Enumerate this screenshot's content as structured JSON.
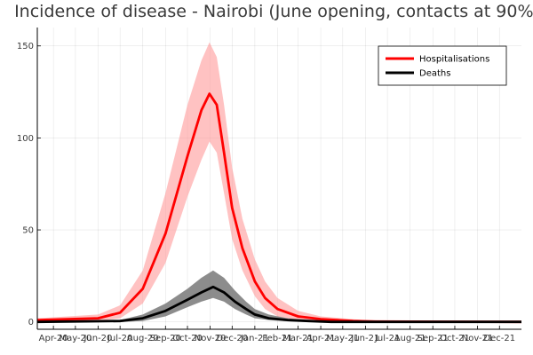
{
  "chart_data": {
    "type": "line",
    "title": "Incidence of disease - Nairobi (June opening, contacts at 90%)",
    "xlabel": "",
    "ylabel": "",
    "x_ticks": [
      "Apr-20",
      "May-20",
      "Jun-20",
      "Jul-20",
      "Aug-20",
      "Sep-20",
      "Oct-20",
      "Nov-20",
      "Dec-20",
      "Jan-21",
      "Feb-21",
      "Mar-21",
      "Apr-21",
      "May-21",
      "Jun-21",
      "Jul-21",
      "Aug-21",
      "Sep-21",
      "Oct-21",
      "Nov-21",
      "Dec-21"
    ],
    "x_range": [
      "2020-03-10",
      "2021-12-31"
    ],
    "y_ticks": [
      0,
      50,
      100,
      150
    ],
    "ylim": [
      -4,
      160
    ],
    "grid": true,
    "legend_position": "top-right",
    "series": [
      {
        "name": "Hospitalisations",
        "color": "#ff0000",
        "band_color": "#ff9999",
        "x": [
          "2020-03-10",
          "2020-06-01",
          "2020-07-01",
          "2020-08-01",
          "2020-09-01",
          "2020-10-01",
          "2020-10-20",
          "2020-10-31",
          "2020-11-10",
          "2020-11-20",
          "2020-12-01",
          "2020-12-15",
          "2021-01-01",
          "2021-01-15",
          "2021-02-01",
          "2021-03-01",
          "2021-04-01",
          "2021-05-15",
          "2021-06-15",
          "2021-12-31"
        ],
        "values": [
          1,
          2,
          5,
          18,
          48,
          90,
          115,
          124,
          118,
          92,
          62,
          40,
          22,
          13,
          7,
          3,
          1.5,
          0.5,
          0.2,
          0
        ],
        "lower": [
          0,
          0.5,
          2,
          10,
          32,
          68,
          88,
          98,
          92,
          70,
          45,
          28,
          14,
          7,
          3,
          1,
          0.3,
          0,
          0,
          0
        ],
        "upper": [
          2,
          4,
          9,
          28,
          70,
          118,
          142,
          152,
          144,
          118,
          84,
          56,
          34,
          22,
          13,
          6,
          3,
          1.5,
          0.5,
          0
        ]
      },
      {
        "name": "Deaths",
        "color": "#000000",
        "band_color": "#808080",
        "x": [
          "2020-03-10",
          "2020-07-01",
          "2020-08-01",
          "2020-09-01",
          "2020-10-01",
          "2020-10-20",
          "2020-11-05",
          "2020-11-20",
          "2020-12-05",
          "2020-12-20",
          "2021-01-01",
          "2021-01-20",
          "2021-02-15",
          "2021-03-15",
          "2021-04-15",
          "2021-06-01",
          "2021-12-31"
        ],
        "values": [
          0,
          0.5,
          2,
          6,
          12,
          16,
          19,
          16,
          11,
          7,
          4,
          2,
          1,
          0.5,
          0,
          0,
          0
        ],
        "lower": [
          0,
          0,
          0.5,
          3,
          8,
          11,
          13,
          11,
          7,
          4,
          2,
          1,
          0.3,
          0,
          0,
          0,
          0
        ],
        "upper": [
          0,
          1,
          4,
          10,
          18,
          24,
          28,
          24,
          17,
          11,
          7,
          4,
          2,
          1,
          0.5,
          0,
          0
        ]
      }
    ]
  }
}
